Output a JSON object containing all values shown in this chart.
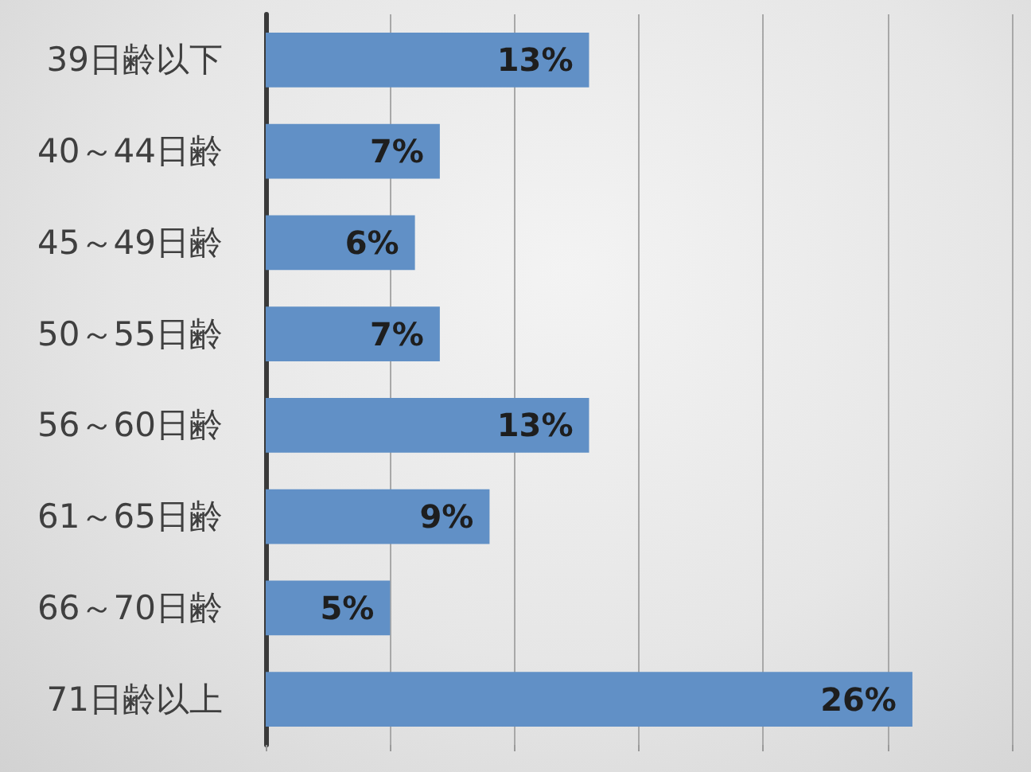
{
  "chart_data": {
    "type": "bar",
    "orientation": "horizontal",
    "categories": [
      "39日齢以下",
      "40～44日齢",
      "45～49日齢",
      "50～55日齢",
      "56～60日齢",
      "61～65日齢",
      "66～70日齢",
      "71日齢以上"
    ],
    "values": [
      13,
      7,
      6,
      7,
      13,
      9,
      5,
      26
    ],
    "value_labels": [
      "13%",
      "7%",
      "6%",
      "7%",
      "13%",
      "9%",
      "5%",
      "26%"
    ],
    "color": "#6190c6",
    "xlim": [
      0,
      30
    ],
    "xticks": [
      {
        "value": 0,
        "label": null
      },
      {
        "value": 5,
        "label": null
      },
      {
        "value": 10,
        "label": null
      },
      {
        "value": 15,
        "label": null
      },
      {
        "value": 20,
        "label": null
      },
      {
        "value": 25,
        "label": null
      },
      {
        "value": 30,
        "label": null
      }
    ],
    "grid": "x",
    "tick_labels": "y"
  }
}
